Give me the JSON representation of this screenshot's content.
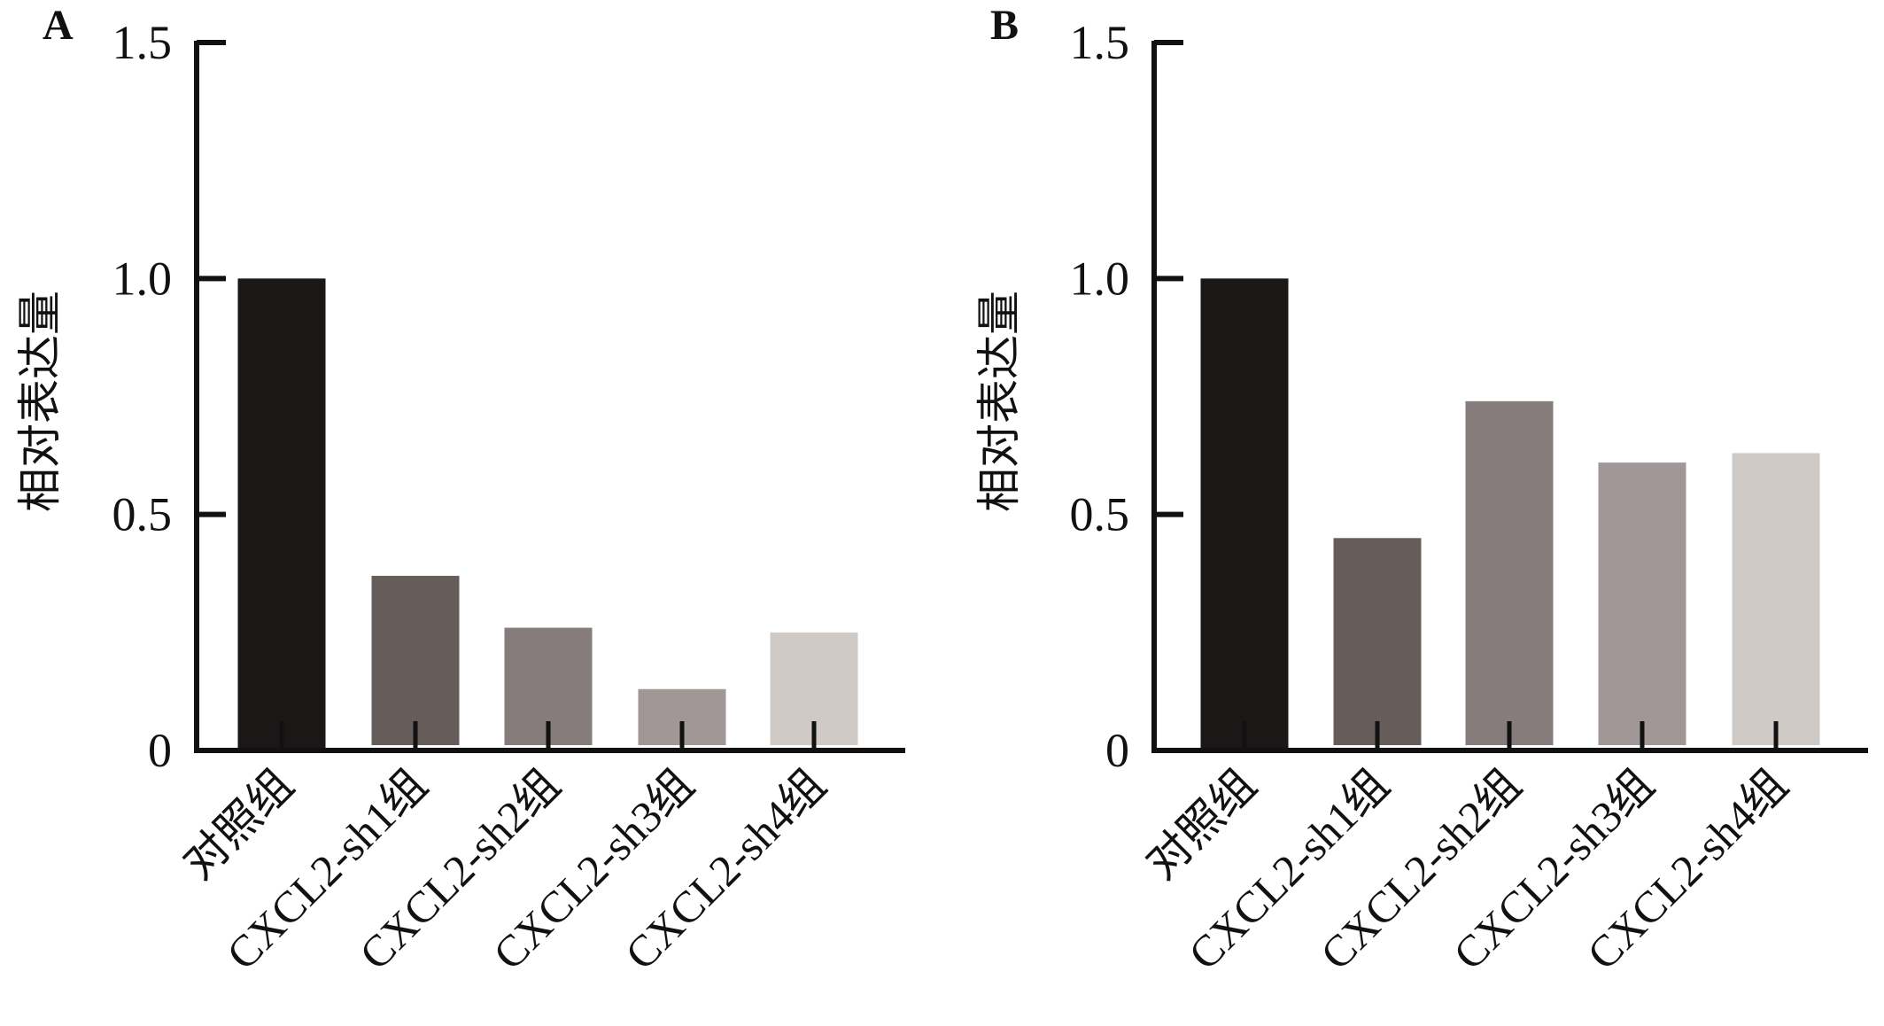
{
  "chart_data": [
    {
      "type": "bar",
      "panel_label": "A",
      "ylabel": "相对表达量",
      "xlabel": "",
      "ylim": [
        0,
        1.5
      ],
      "yticks": [
        "0",
        "0.5",
        "1.0",
        "1.5"
      ],
      "grid": false,
      "categories": [
        "对照组",
        "CXCL2-sh1组",
        "CXCL2-sh2组",
        "CXCL2-sh3组",
        "CXCL2-sh4组"
      ],
      "values": [
        1.0,
        0.37,
        0.26,
        0.13,
        0.25
      ],
      "colors": [
        "#1a1716",
        "#665d5a",
        "#857c7b",
        "#a09796",
        "#d0cac7"
      ]
    },
    {
      "type": "bar",
      "panel_label": "B",
      "ylabel": "相对表达量",
      "xlabel": "",
      "ylim": [
        0,
        1.5
      ],
      "yticks": [
        "0",
        "0.5",
        "1.0",
        "1.5"
      ],
      "grid": false,
      "categories": [
        "对照组",
        "CXCL2-sh1组",
        "CXCL2-sh2组",
        "CXCL2-sh3组",
        "CXCL2-sh4组"
      ],
      "values": [
        1.0,
        0.45,
        0.74,
        0.61,
        0.63
      ],
      "colors": [
        "#1a1716",
        "#665d5a",
        "#857c7b",
        "#a09796",
        "#d0cac7"
      ]
    }
  ]
}
